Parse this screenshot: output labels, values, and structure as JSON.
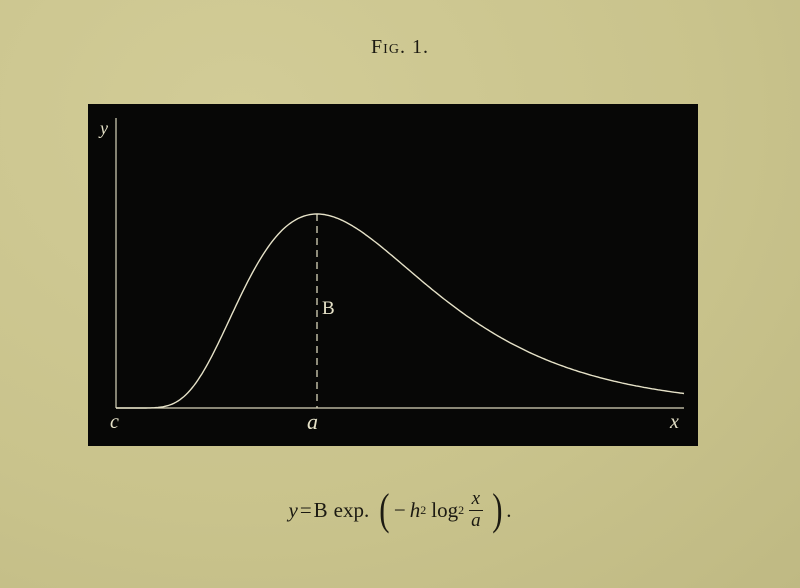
{
  "figure": {
    "title": "Fig. 1."
  },
  "plot": {
    "y_axis_label": "y",
    "x_axis_label": "x",
    "origin_label": "c",
    "peak_x_label": "a",
    "peak_height_label": "B"
  },
  "formula": {
    "lhs": "y",
    "equals": "=",
    "coefficient": "B",
    "function": "exp.",
    "open_paren": "(",
    "minus": "−",
    "h": "h",
    "h_exp": "2",
    "log": "log",
    "log_exp": "2",
    "frac_num": "x",
    "frac_den": "a",
    "close_paren": ")",
    "end": "."
  },
  "colors": {
    "paper": "#c9c38c",
    "plate": "#070706",
    "line": "#e6e2c8"
  }
}
